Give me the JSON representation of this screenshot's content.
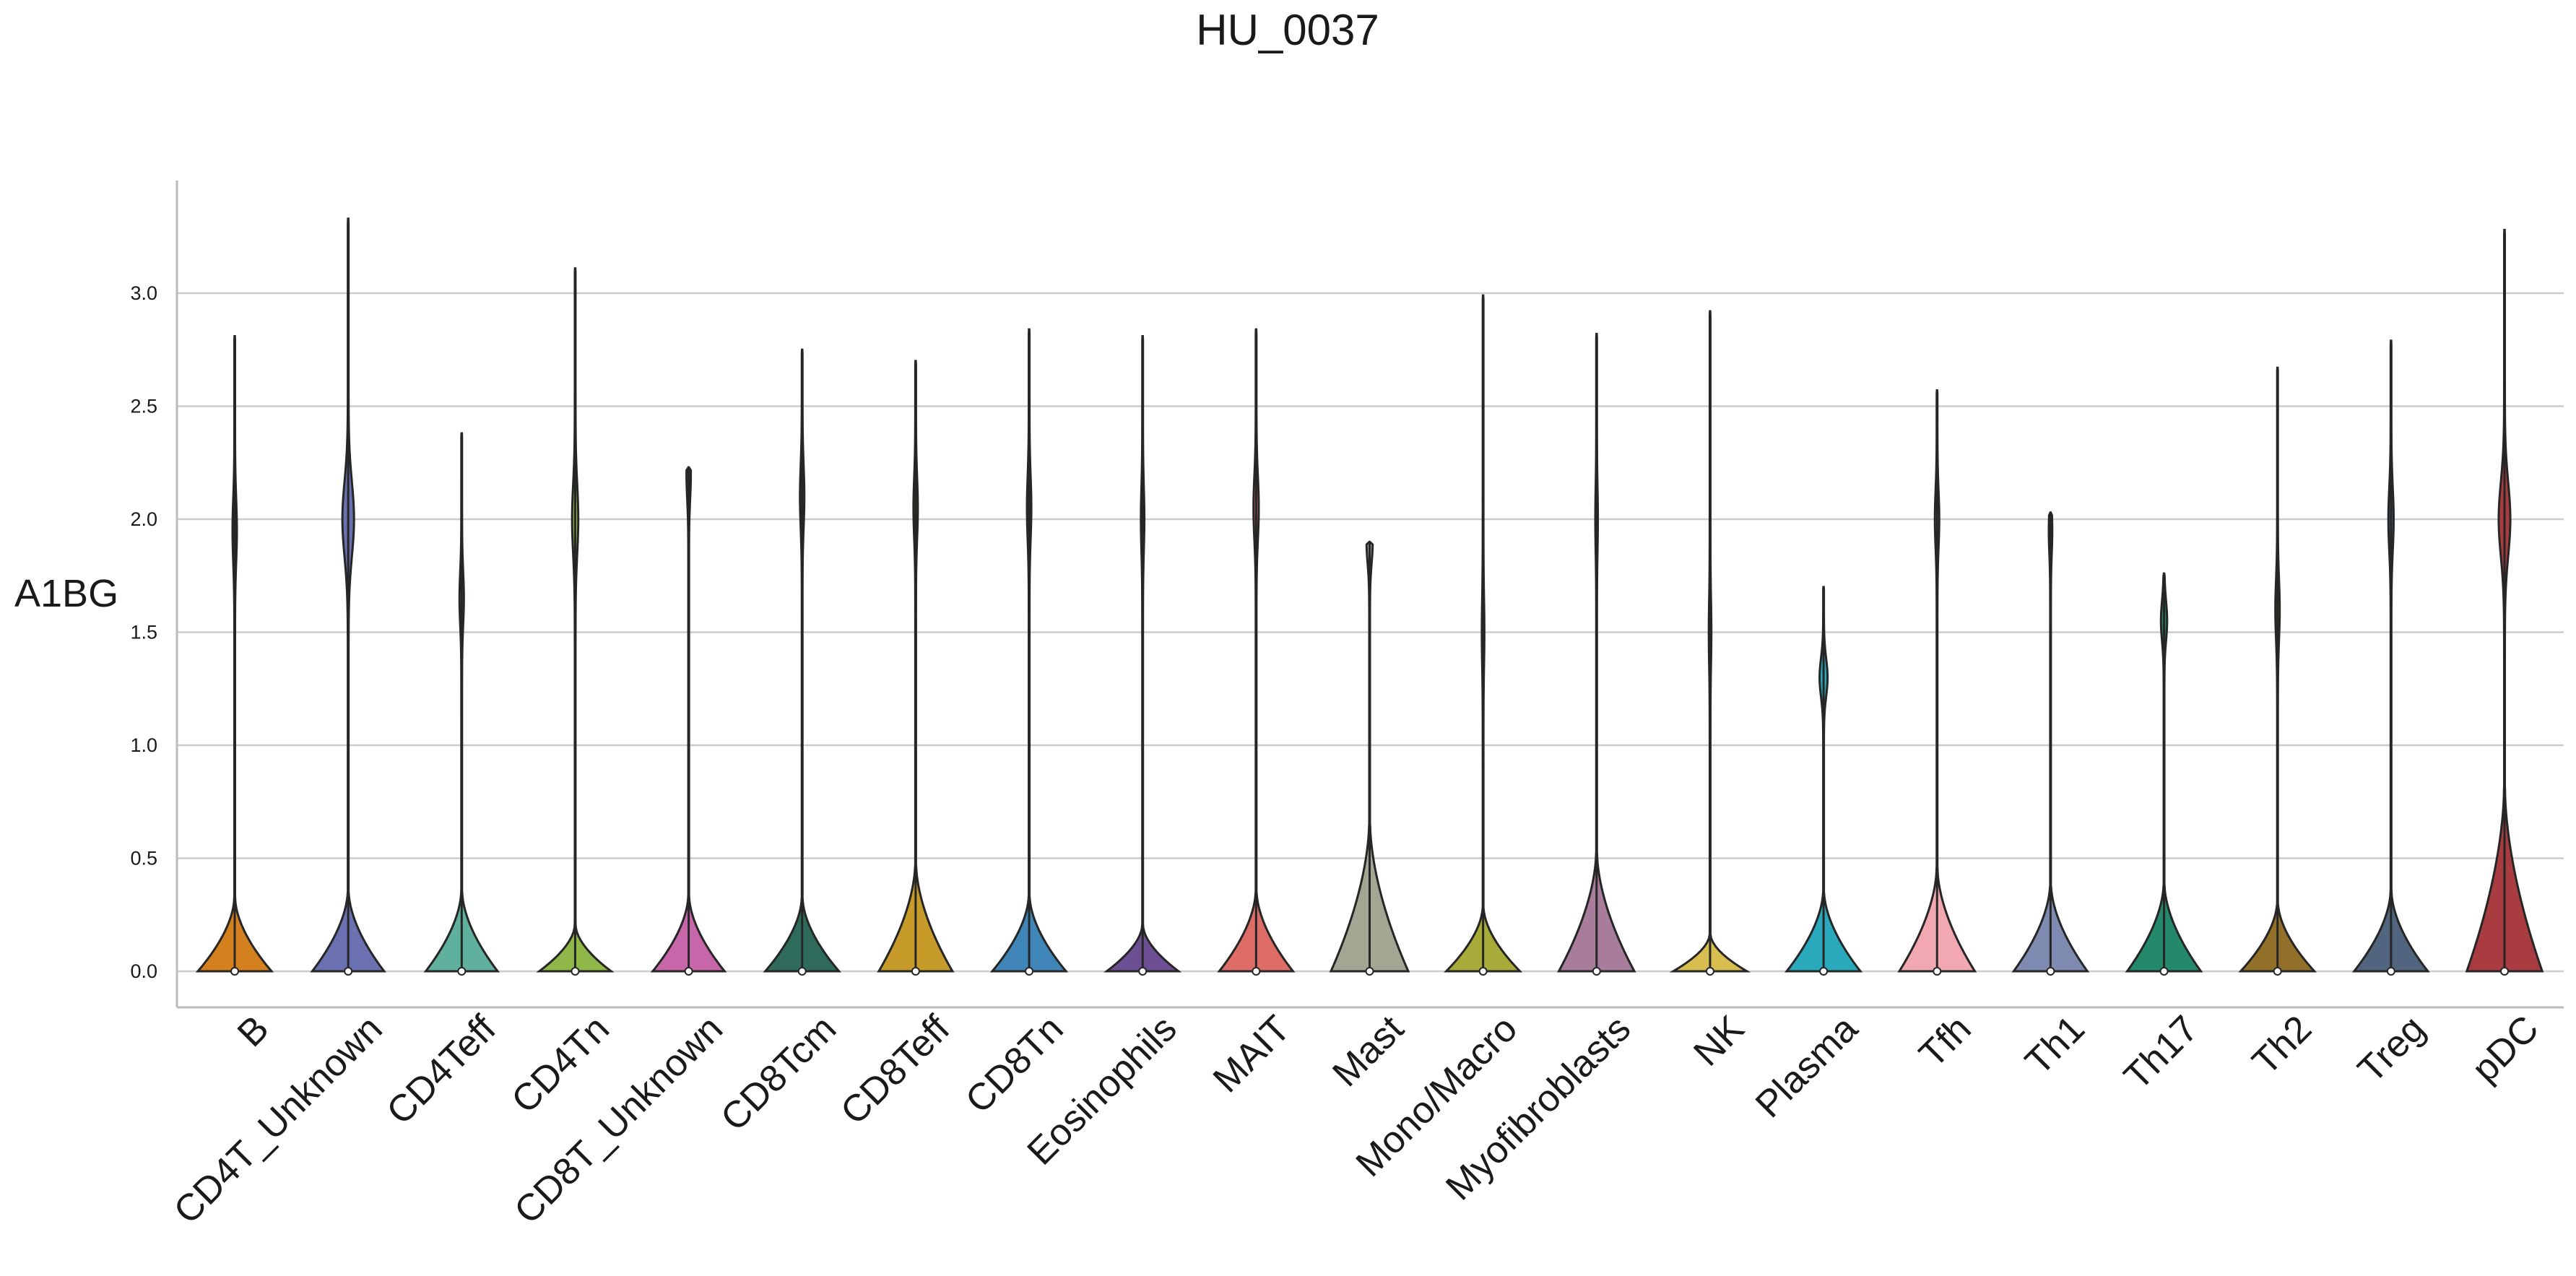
{
  "chart_data": {
    "type": "violin",
    "title": "HU_0037",
    "ylabel": "A1BG",
    "xlabel": "",
    "ylim": [
      -0.16,
      3.46
    ],
    "yticks": [
      "0.0",
      "0.5",
      "1.0",
      "1.5",
      "2.0",
      "2.5",
      "3.0"
    ],
    "grid": "horizontal",
    "median_all": 0.0,
    "series": [
      {
        "category": "B",
        "color": "#d4801f",
        "max": 2.81,
        "bulk_top": 0.32,
        "bulk_width": 0.8,
        "upper_mode": 1.95,
        "upper_width": 0.04
      },
      {
        "category": "CD4T_Unknown",
        "color": "#6a70b0",
        "max": 3.33,
        "bulk_top": 0.35,
        "bulk_width": 0.78,
        "upper_mode": 2.0,
        "upper_width": 0.12
      },
      {
        "category": "CD4Teff",
        "color": "#5fb09d",
        "max": 2.38,
        "bulk_top": 0.35,
        "bulk_width": 0.78,
        "upper_mode": 1.65,
        "upper_width": 0.04
      },
      {
        "category": "CD4Tn",
        "color": "#8fb849",
        "max": 3.11,
        "bulk_top": 0.2,
        "bulk_width": 0.78,
        "upper_mode": 2.0,
        "upper_width": 0.06
      },
      {
        "category": "CD8T_Unknown",
        "color": "#c766a8",
        "max": 2.23,
        "bulk_top": 0.33,
        "bulk_width": 0.78,
        "upper_mode": 2.2,
        "upper_width": 0.04
      },
      {
        "category": "CD8Tcm",
        "color": "#2e6b5a",
        "max": 2.75,
        "bulk_top": 0.32,
        "bulk_width": 0.8,
        "upper_mode": 2.1,
        "upper_width": 0.04
      },
      {
        "category": "CD8Teff",
        "color": "#c69b2a",
        "max": 2.7,
        "bulk_top": 0.47,
        "bulk_width": 0.8,
        "upper_mode": 2.05,
        "upper_width": 0.04
      },
      {
        "category": "CD8Tn",
        "color": "#3f85b8",
        "max": 2.84,
        "bulk_top": 0.33,
        "bulk_width": 0.8,
        "upper_mode": 2.05,
        "upper_width": 0.04
      },
      {
        "category": "Eosinophils",
        "color": "#6d4f94",
        "max": 2.81,
        "bulk_top": 0.2,
        "bulk_width": 0.78,
        "upper_mode": 2.0,
        "upper_width": 0.03
      },
      {
        "category": "MAIT",
        "color": "#df6d67",
        "max": 2.84,
        "bulk_top": 0.35,
        "bulk_width": 0.8,
        "upper_mode": 2.05,
        "upper_width": 0.05
      },
      {
        "category": "Mast",
        "color": "#a2a794",
        "max": 1.9,
        "bulk_top": 0.65,
        "bulk_width": 0.84,
        "upper_mode": 1.9,
        "upper_width": 0.06
      },
      {
        "category": "Mono/Macro",
        "color": "#a6ab3a",
        "max": 2.99,
        "bulk_top": 0.28,
        "bulk_width": 0.8,
        "upper_mode": 1.5,
        "upper_width": 0.02
      },
      {
        "category": "Myofibroblasts",
        "color": "#a87d9c",
        "max": 2.82,
        "bulk_top": 0.52,
        "bulk_width": 0.82,
        "upper_mode": 2.0,
        "upper_width": 0.02
      },
      {
        "category": "NK",
        "color": "#d8bd50",
        "max": 2.92,
        "bulk_top": 0.16,
        "bulk_width": 0.8,
        "upper_mode": 1.5,
        "upper_width": 0.02
      },
      {
        "category": "Plasma",
        "color": "#2aa9bd",
        "max": 1.7,
        "bulk_top": 0.35,
        "bulk_width": 0.8,
        "upper_mode": 1.3,
        "upper_width": 0.08
      },
      {
        "category": "Tfh",
        "color": "#f1a8b1",
        "max": 2.57,
        "bulk_top": 0.45,
        "bulk_width": 0.82,
        "upper_mode": 2.0,
        "upper_width": 0.04
      },
      {
        "category": "Th1",
        "color": "#7f8ab0",
        "max": 2.03,
        "bulk_top": 0.38,
        "bulk_width": 0.8,
        "upper_mode": 1.95,
        "upper_width": 0.03
      },
      {
        "category": "Th17",
        "color": "#23896a",
        "max": 1.76,
        "bulk_top": 0.38,
        "bulk_width": 0.8,
        "upper_mode": 1.55,
        "upper_width": 0.06
      },
      {
        "category": "Th2",
        "color": "#93702a",
        "max": 2.67,
        "bulk_top": 0.3,
        "bulk_width": 0.8,
        "upper_mode": 1.6,
        "upper_width": 0.04
      },
      {
        "category": "Treg",
        "color": "#52657e",
        "max": 2.79,
        "bulk_top": 0.35,
        "bulk_width": 0.8,
        "upper_mode": 2.0,
        "upper_width": 0.05
      },
      {
        "category": "pDC",
        "color": "#a83c40",
        "max": 3.28,
        "bulk_top": 0.8,
        "bulk_width": 0.82,
        "upper_mode": 2.0,
        "upper_width": 0.12
      }
    ]
  }
}
